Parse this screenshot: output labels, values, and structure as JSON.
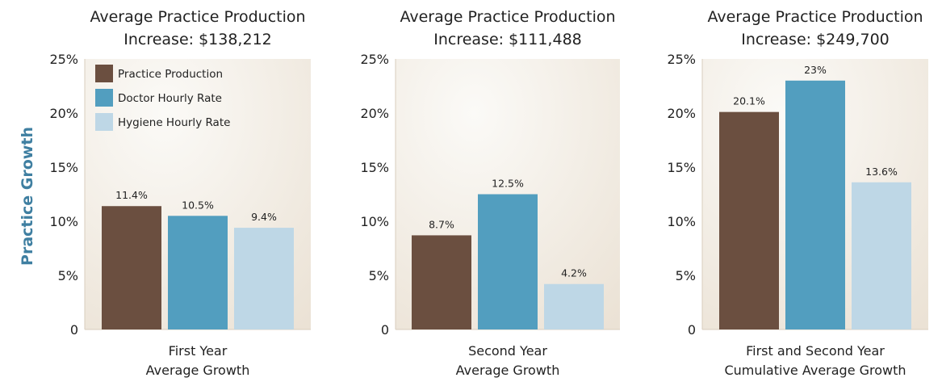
{
  "ylabel": "Practice Growth",
  "colors": {
    "practice_production": "#6b4f40",
    "doctor_hourly_rate": "#529ebf",
    "hygiene_hourly_rate": "#bed7e6",
    "ylabel": "#3f7fa1",
    "panel_bg_light": "#f6f3ee",
    "panel_bg_dark": "#ece3d7",
    "axis": "#d8cdbd"
  },
  "legend": {
    "placement": "top-left of first panel",
    "items": [
      "Practice Production",
      "Doctor Hourly Rate",
      "Hygiene Hourly Rate"
    ]
  },
  "chart_data": [
    {
      "type": "bar",
      "title": [
        "Average Practice Production",
        "Increase: $138,212"
      ],
      "categories": [
        "First Year",
        "Average Growth"
      ],
      "yticks": [
        "25%",
        "20%",
        "15%",
        "10%",
        "5%",
        "0"
      ],
      "ylim": [
        0,
        25
      ],
      "grid": false,
      "series": [
        {
          "name": "Practice Production",
          "value": 11.4,
          "label": "11.4%"
        },
        {
          "name": "Doctor Hourly Rate",
          "value": 10.5,
          "label": "10.5%"
        },
        {
          "name": "Hygiene Hourly Rate",
          "value": 9.4,
          "label": "9.4%"
        }
      ]
    },
    {
      "type": "bar",
      "title": [
        "Average Practice Production",
        "Increase: $111,488"
      ],
      "categories": [
        "Second Year",
        "Average Growth"
      ],
      "yticks": [
        "25%",
        "20%",
        "15%",
        "10%",
        "5%",
        "0"
      ],
      "ylim": [
        0,
        25
      ],
      "grid": false,
      "series": [
        {
          "name": "Practice Production",
          "value": 8.7,
          "label": "8.7%"
        },
        {
          "name": "Doctor Hourly Rate",
          "value": 12.5,
          "label": "12.5%"
        },
        {
          "name": "Hygiene Hourly Rate",
          "value": 4.2,
          "label": "4.2%"
        }
      ]
    },
    {
      "type": "bar",
      "title": [
        "Average Practice Production",
        "Increase: $249,700"
      ],
      "categories": [
        "First and Second Year",
        "Cumulative Average Growth"
      ],
      "yticks": [
        "25%",
        "20%",
        "15%",
        "10%",
        "5%",
        "0"
      ],
      "ylim": [
        0,
        25
      ],
      "grid": false,
      "series": [
        {
          "name": "Practice Production",
          "value": 20.1,
          "label": "20.1%"
        },
        {
          "name": "Doctor Hourly Rate",
          "value": 23,
          "label": "23%"
        },
        {
          "name": "Hygiene Hourly Rate",
          "value": 13.6,
          "label": "13.6%"
        }
      ]
    }
  ]
}
